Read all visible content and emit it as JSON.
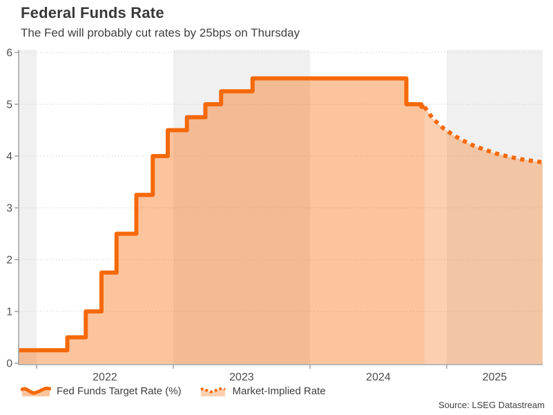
{
  "header": {
    "title": "Federal Funds Rate",
    "subtitle": "The Fed will probably cut rates by 25bps on Thursday"
  },
  "source": "Source: LSEG Datastream",
  "colors": {
    "line_orange": "#f5690a",
    "area_under_solid": "rgba(246,108,10,0.40)",
    "area_under_dotted": "rgba(246,108,10,0.33)",
    "year_band_gray": "#f0f0f0",
    "gridline": "#d2d2d2",
    "axis": "#9f9f9f",
    "tick_text": "#4c4c4c"
  },
  "chart_data": {
    "type": "area",
    "title": "Federal Funds Rate",
    "xlabel": "",
    "ylabel": "",
    "grid": "horizontal-dotted",
    "legend_position": "bottom-left",
    "x_range": [
      2021.869,
      2025.702
    ],
    "y_range": [
      0,
      6
    ],
    "y_ticks": [
      0,
      1,
      2,
      3,
      4,
      5,
      6
    ],
    "x_year_ticks": [
      2022,
      2023,
      2024,
      2025
    ],
    "x_tick_labels": [
      "2022",
      "2023",
      "2024",
      "2025"
    ],
    "shaded_year_bands": [
      [
        2021.869,
        2022
      ],
      [
        2023,
        2024
      ],
      [
        2025,
        2025.702
      ]
    ],
    "series": [
      {
        "name": "Fed Funds Target Rate (%)",
        "style": "solid-step-area",
        "points": [
          [
            2021.869,
            0.25
          ],
          [
            2022.225,
            0.5
          ],
          [
            2022.36,
            1.0
          ],
          [
            2022.475,
            1.75
          ],
          [
            2022.585,
            2.5
          ],
          [
            2022.73,
            3.25
          ],
          [
            2022.85,
            4.0
          ],
          [
            2022.96,
            4.5
          ],
          [
            2023.1,
            4.75
          ],
          [
            2023.235,
            5.0
          ],
          [
            2023.35,
            5.25
          ],
          [
            2023.58,
            5.5
          ],
          [
            2024.705,
            5.0
          ],
          [
            2024.815,
            4.95
          ]
        ],
        "end_x": 2024.838
      },
      {
        "name": "Market-Implied Rate",
        "style": "dotted-line-area",
        "points": [
          [
            2024.838,
            4.95
          ],
          [
            2024.9,
            4.72
          ],
          [
            2024.97,
            4.55
          ],
          [
            2025.04,
            4.42
          ],
          [
            2025.11,
            4.31
          ],
          [
            2025.19,
            4.21
          ],
          [
            2025.27,
            4.13
          ],
          [
            2025.36,
            4.05
          ],
          [
            2025.45,
            3.99
          ],
          [
            2025.54,
            3.94
          ],
          [
            2025.62,
            3.91
          ],
          [
            2025.702,
            3.88
          ]
        ]
      }
    ]
  }
}
